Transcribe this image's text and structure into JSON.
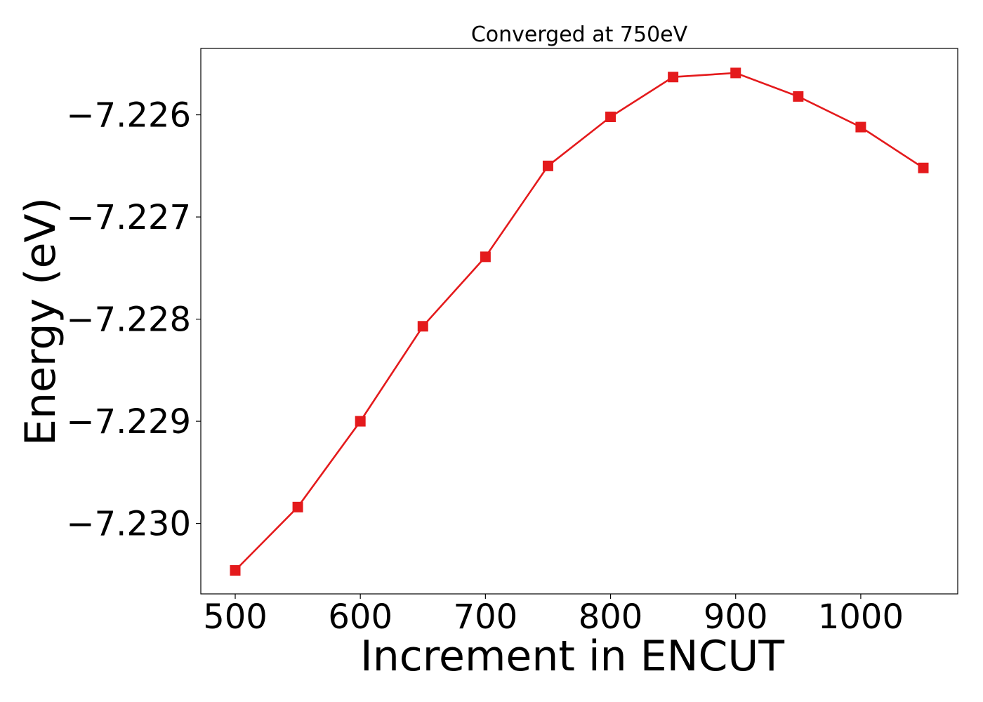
{
  "chart_data": {
    "type": "line",
    "title": "Converged at 750eV",
    "xlabel": "Increment in ENCUT",
    "ylabel": "Energy (eV)",
    "x": [
      500,
      550,
      600,
      650,
      700,
      750,
      800,
      850,
      900,
      950,
      1000,
      1050
    ],
    "series": [
      {
        "values": [
          -7.23046,
          -7.22984,
          -7.229,
          -7.22807,
          -7.22739,
          -7.2265,
          -7.22602,
          -7.22563,
          -7.22559,
          -7.22582,
          -7.22612,
          -7.22652
        ],
        "color": "#e41a1c",
        "marker": "square"
      }
    ],
    "xticks": [
      500,
      600,
      700,
      800,
      900,
      1000
    ],
    "xtick_labels": [
      "500",
      "600",
      "700",
      "800",
      "900",
      "1000"
    ],
    "yticks": [
      -7.23,
      -7.229,
      -7.228,
      -7.227,
      -7.226
    ],
    "ytick_labels": [
      "−7.230",
      "−7.229",
      "−7.228",
      "−7.227",
      "−7.226"
    ],
    "xlim": [
      472.5,
      1077.5
    ],
    "ylim": [
      -7.23069,
      -7.22535
    ],
    "grid": false,
    "legend": false
  }
}
